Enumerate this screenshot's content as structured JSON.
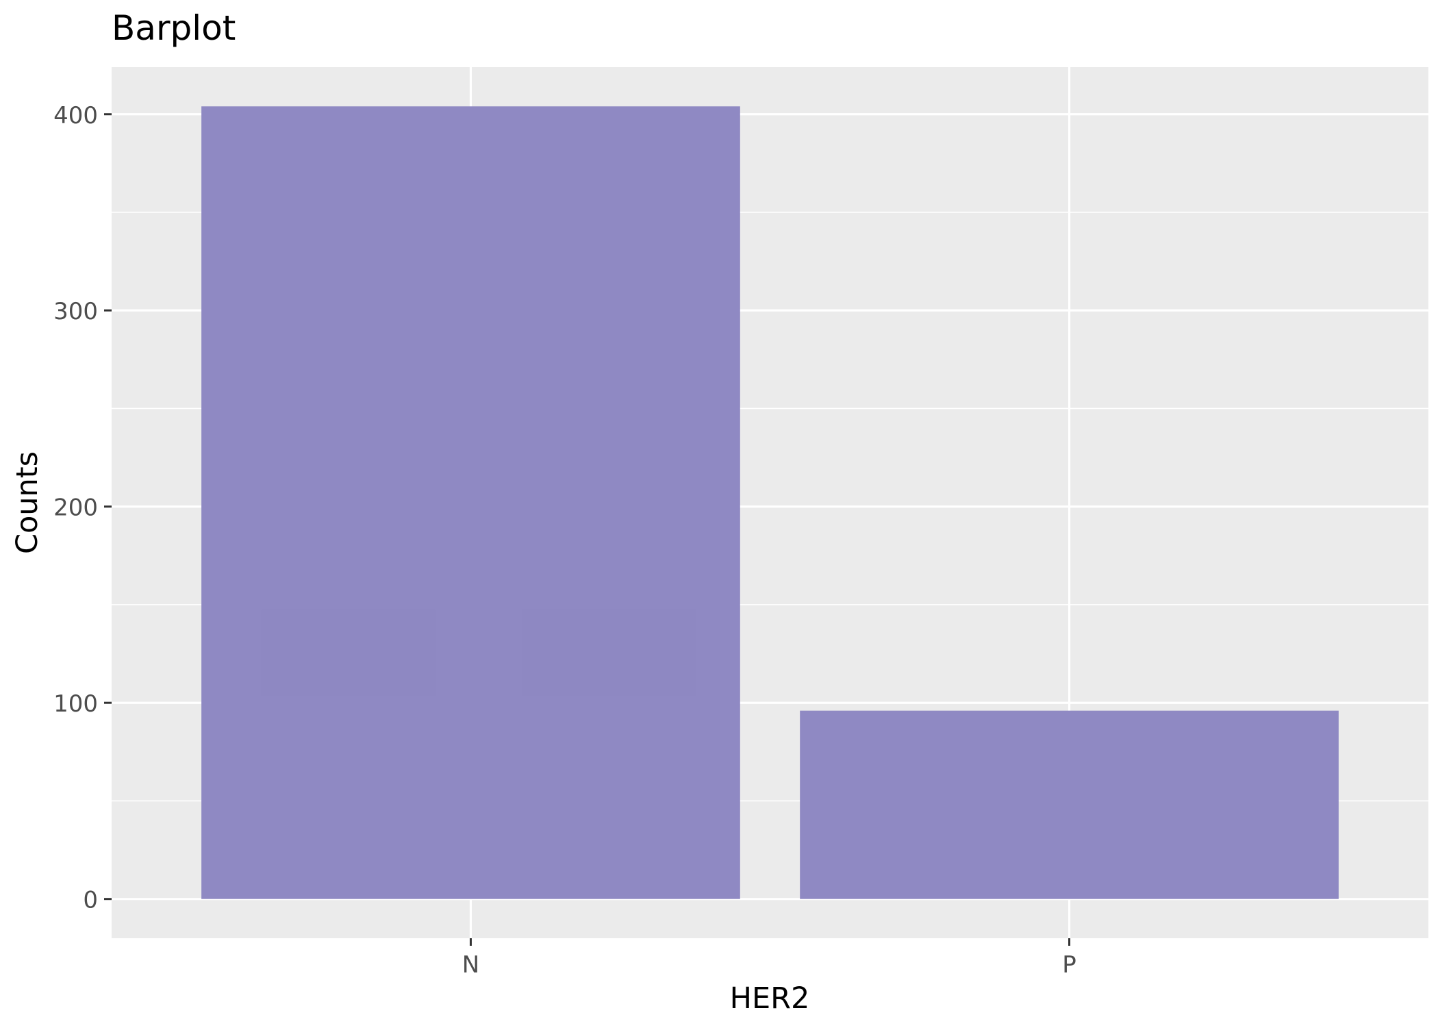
{
  "chart_data": {
    "type": "bar",
    "title": "Barplot",
    "xlabel": "HER2",
    "ylabel": "Counts",
    "categories": [
      "N",
      "P"
    ],
    "values": [
      404,
      96
    ],
    "ylim": [
      -20,
      424
    ],
    "yticks": [
      0,
      100,
      200,
      300,
      400
    ],
    "y_minor": [
      50,
      150,
      250,
      350
    ],
    "grid": true,
    "legend": "none",
    "bar_color": "#8B85C1",
    "panel_background": "#EBEBEB",
    "grid_color": "#FFFFFF"
  }
}
